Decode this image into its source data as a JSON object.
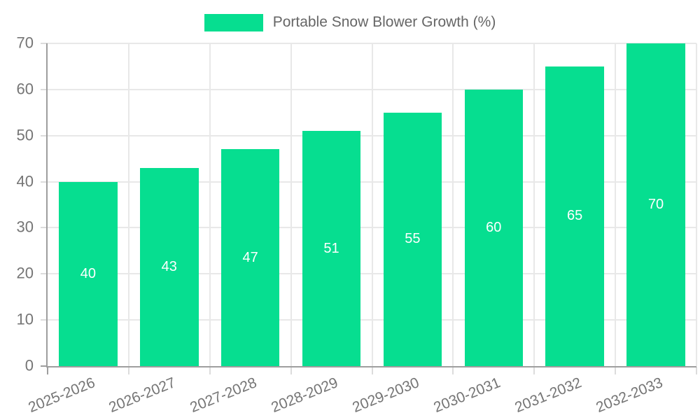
{
  "chart_data": {
    "type": "bar",
    "title": "Portable Snow Blower Growth (%)",
    "categories": [
      "2025-2026",
      "2026-2027",
      "2027-2028",
      "2028-2029",
      "2029-2030",
      "2030-2031",
      "2031-2032",
      "2032-2033"
    ],
    "values": [
      40,
      43,
      47,
      51,
      55,
      60,
      65,
      70
    ],
    "series": [
      {
        "name": "Portable Snow Blower Growth (%)",
        "values": [
          40,
          43,
          47,
          51,
          55,
          60,
          65,
          70
        ]
      }
    ],
    "xlabel": "",
    "ylabel": "",
    "ylim": [
      0,
      70
    ],
    "yticks": [
      0,
      10,
      20,
      30,
      40,
      50,
      60,
      70
    ],
    "grid": true,
    "legend_position": "top",
    "bar_labels_inside": true
  },
  "colors": {
    "bar": "#06de90",
    "bar_value_label": "#ffffff",
    "gridline": "#e8e8e8",
    "axis_line": "#9e9e9e",
    "tick_mark": "#dcdcdc",
    "tick_label": "#757575",
    "legend_text": "#666666",
    "background": "#ffffff"
  }
}
